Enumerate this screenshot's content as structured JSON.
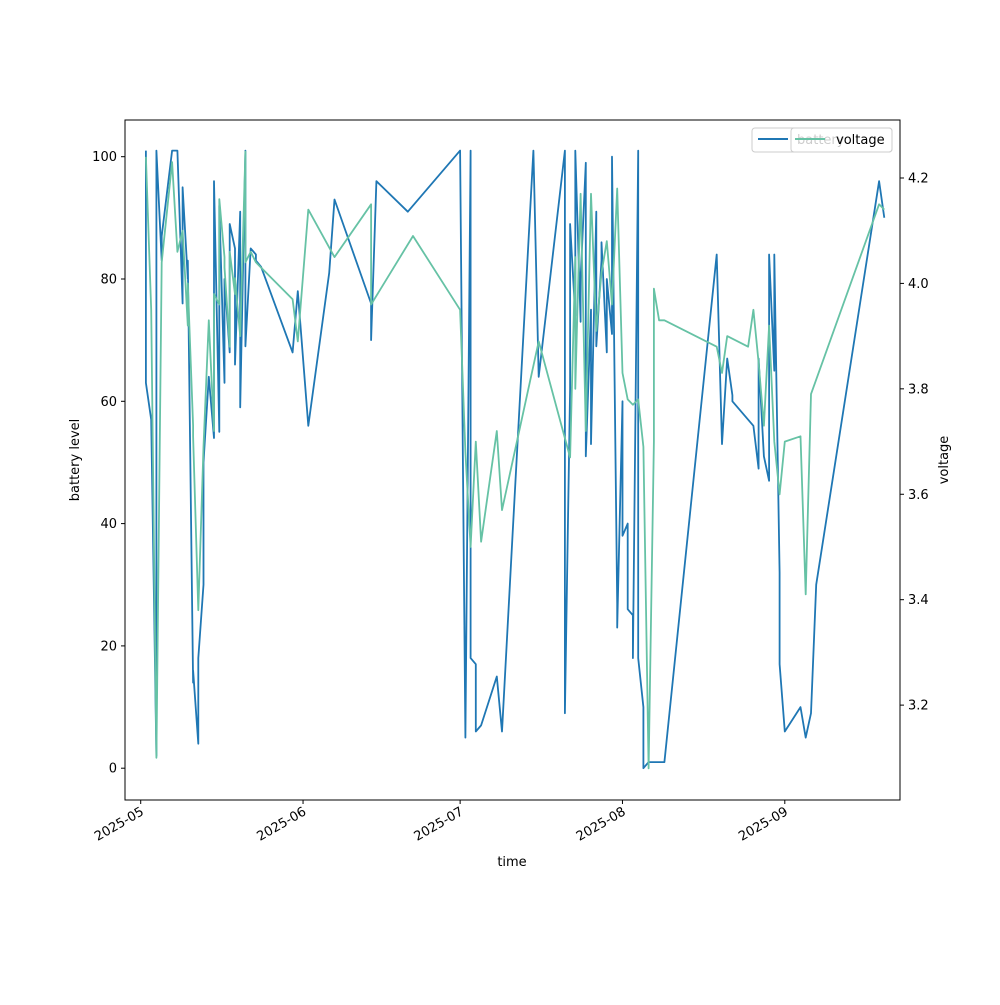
{
  "chart_data": {
    "type": "line",
    "title": "",
    "xlabel": "time",
    "ylabel_left": "battery level",
    "ylabel_right": "voltage",
    "xlim": [
      "2025-04-28",
      "2025-09-23"
    ],
    "ylim_left": [
      -5.2,
      106
    ],
    "ylim_right": [
      3.02,
      4.31
    ],
    "x_ticks": [
      "2025-05-01",
      "2025-06-01",
      "2025-07-01",
      "2025-08-01",
      "2025-09-01"
    ],
    "x_tick_labels": [
      "2025-05",
      "2025-06",
      "2025-07",
      "2025-08",
      "2025-09"
    ],
    "y_ticks_left": [
      0,
      20,
      40,
      60,
      80,
      100
    ],
    "y_tick_labels_left": [
      "0",
      "20",
      "40",
      "60",
      "80",
      "100"
    ],
    "y_ticks_right": [
      3.2,
      3.4,
      3.6,
      3.8,
      4.0,
      4.2
    ],
    "y_tick_labels_right": [
      "3.2",
      "3.4",
      "3.6",
      "3.8",
      "4.0",
      "4.2"
    ],
    "grid": false,
    "legend_placement": "top-right",
    "series": [
      {
        "name": "battery",
        "axis": "left",
        "color": "#1f77b4",
        "x": [
          "2025-05-02",
          "2025-05-02",
          "2025-05-03",
          "2025-05-04",
          "2025-05-04",
          "2025-05-05",
          "2025-05-05",
          "2025-05-07",
          "2025-05-08",
          "2025-05-09",
          "2025-05-09",
          "2025-05-10",
          "2025-05-10",
          "2025-05-11",
          "2025-05-11",
          "2025-05-12",
          "2025-05-12",
          "2025-05-13",
          "2025-05-13",
          "2025-05-14",
          "2025-05-15",
          "2025-05-15",
          "2025-05-16",
          "2025-05-16",
          "2025-05-17",
          "2025-05-17",
          "2025-05-18",
          "2025-05-18",
          "2025-05-19",
          "2025-05-19",
          "2025-05-20",
          "2025-05-20",
          "2025-05-21",
          "2025-05-21",
          "2025-05-22",
          "2025-05-22",
          "2025-05-23",
          "2025-05-23",
          "2025-05-24",
          "2025-05-30",
          "2025-05-31",
          "2025-06-02",
          "2025-06-06",
          "2025-06-07",
          "2025-06-14",
          "2025-06-14",
          "2025-06-15",
          "2025-06-21",
          "2025-07-01",
          "2025-07-02",
          "2025-07-03",
          "2025-07-03",
          "2025-07-04",
          "2025-07-04",
          "2025-07-05",
          "2025-07-08",
          "2025-07-09",
          "2025-07-11",
          "2025-07-15",
          "2025-07-16",
          "2025-07-21",
          "2025-07-21",
          "2025-07-22",
          "2025-07-22",
          "2025-07-23",
          "2025-07-23",
          "2025-07-24",
          "2025-07-24",
          "2025-07-25",
          "2025-07-25",
          "2025-07-26",
          "2025-07-26",
          "2025-07-27",
          "2025-07-27",
          "2025-07-28",
          "2025-07-28",
          "2025-07-29",
          "2025-07-29",
          "2025-07-30",
          "2025-07-30",
          "2025-07-31",
          "2025-07-31",
          "2025-08-01",
          "2025-08-01",
          "2025-08-02",
          "2025-08-02",
          "2025-08-03",
          "2025-08-03",
          "2025-08-04",
          "2025-08-04",
          "2025-08-05",
          "2025-08-05",
          "2025-08-06",
          "2025-08-06",
          "2025-08-07",
          "2025-08-07",
          "2025-08-08",
          "2025-08-08",
          "2025-08-09",
          "2025-08-19",
          "2025-08-20",
          "2025-08-21",
          "2025-08-22",
          "2025-08-22",
          "2025-08-26",
          "2025-08-27",
          "2025-08-27",
          "2025-08-28",
          "2025-08-29",
          "2025-08-29",
          "2025-08-30",
          "2025-08-30",
          "2025-08-31",
          "2025-08-31",
          "2025-09-01",
          "2025-09-04",
          "2025-09-05",
          "2025-09-06",
          "2025-09-07",
          "2025-09-19",
          "2025-09-20"
        ],
        "y": [
          101,
          63,
          57,
          2,
          101,
          83,
          87,
          101,
          101,
          76,
          95,
          80,
          83,
          14,
          16,
          4,
          18,
          30,
          50,
          64,
          54,
          96,
          55,
          92,
          63,
          80,
          68,
          89,
          85,
          66,
          91,
          59,
          101,
          69,
          85,
          85,
          84,
          83,
          82,
          68,
          78,
          56,
          81,
          93,
          76,
          70,
          96,
          91,
          101,
          5,
          101,
          18,
          17,
          6,
          7,
          15,
          6,
          38,
          101,
          64,
          101,
          9,
          62,
          89,
          74,
          101,
          73,
          80,
          99,
          51,
          75,
          53,
          91,
          69,
          83,
          86,
          68,
          80,
          71,
          100,
          27,
          23,
          60,
          38,
          40,
          26,
          25,
          18,
          101,
          18,
          10,
          0,
          1,
          1,
          1,
          1,
          1,
          1,
          1,
          84,
          53,
          67,
          61,
          60,
          56,
          49,
          67,
          51,
          47,
          84,
          65,
          84,
          32,
          17,
          6,
          10,
          5,
          9,
          30,
          96,
          90
        ],
        "x_note": ""
      },
      {
        "name": "voltage",
        "axis": "right",
        "color": "#66c2a5",
        "x": [
          "2025-05-02",
          "2025-05-03",
          "2025-05-04",
          "2025-05-05",
          "2025-05-07",
          "2025-05-08",
          "2025-05-09",
          "2025-05-10",
          "2025-05-10",
          "2025-05-11",
          "2025-05-11",
          "2025-05-12",
          "2025-05-13",
          "2025-05-14",
          "2025-05-15",
          "2025-05-15",
          "2025-05-16",
          "2025-05-16",
          "2025-05-17",
          "2025-05-17",
          "2025-05-18",
          "2025-05-18",
          "2025-05-19",
          "2025-05-19",
          "2025-05-20",
          "2025-05-21",
          "2025-05-21",
          "2025-05-22",
          "2025-05-23",
          "2025-05-24",
          "2025-05-30",
          "2025-05-31",
          "2025-06-02",
          "2025-06-07",
          "2025-06-14",
          "2025-06-14",
          "2025-06-22",
          "2025-07-01",
          "2025-07-02",
          "2025-07-03",
          "2025-07-04",
          "2025-07-05",
          "2025-07-08",
          "2025-07-09",
          "2025-07-16",
          "2025-07-22",
          "2025-07-23",
          "2025-07-23",
          "2025-07-24",
          "2025-07-25",
          "2025-07-26",
          "2025-07-27",
          "2025-07-28",
          "2025-07-29",
          "2025-07-30",
          "2025-07-31",
          "2025-08-01",
          "2025-08-02",
          "2025-08-03",
          "2025-08-04",
          "2025-08-05",
          "2025-08-06",
          "2025-08-07",
          "2025-08-07",
          "2025-08-08",
          "2025-08-09",
          "2025-08-19",
          "2025-08-20",
          "2025-08-21",
          "2025-08-25",
          "2025-08-26",
          "2025-08-27",
          "2025-08-28",
          "2025-08-29",
          "2025-08-30",
          "2025-08-31",
          "2025-09-01",
          "2025-09-04",
          "2025-09-05",
          "2025-09-06",
          "2025-09-19",
          "2025-09-20"
        ],
        "y": [
          4.24,
          3.95,
          3.1,
          4.04,
          4.23,
          4.06,
          4.1,
          3.92,
          4.0,
          3.73,
          3.71,
          3.38,
          3.69,
          3.93,
          3.72,
          3.98,
          3.96,
          4.16,
          4.05,
          4.03,
          3.88,
          4.06,
          3.98,
          4.01,
          3.9,
          4.25,
          4.04,
          4.06,
          4.04,
          4.03,
          3.97,
          3.89,
          4.14,
          4.05,
          4.15,
          3.96,
          4.09,
          3.95,
          3.68,
          3.5,
          3.7,
          3.51,
          3.72,
          3.57,
          3.89,
          3.67,
          4.05,
          3.8,
          4.17,
          3.72,
          4.17,
          3.91,
          4.02,
          4.08,
          3.96,
          4.18,
          3.83,
          3.78,
          3.77,
          3.78,
          3.69,
          3.08,
          3.7,
          3.99,
          3.93,
          3.93,
          3.88,
          3.83,
          3.9,
          3.88,
          3.95,
          3.85,
          3.73,
          3.92,
          3.7,
          3.6,
          3.7,
          3.71,
          3.41,
          3.79,
          4.15,
          4.14
        ],
        "x_note": ""
      }
    ]
  }
}
